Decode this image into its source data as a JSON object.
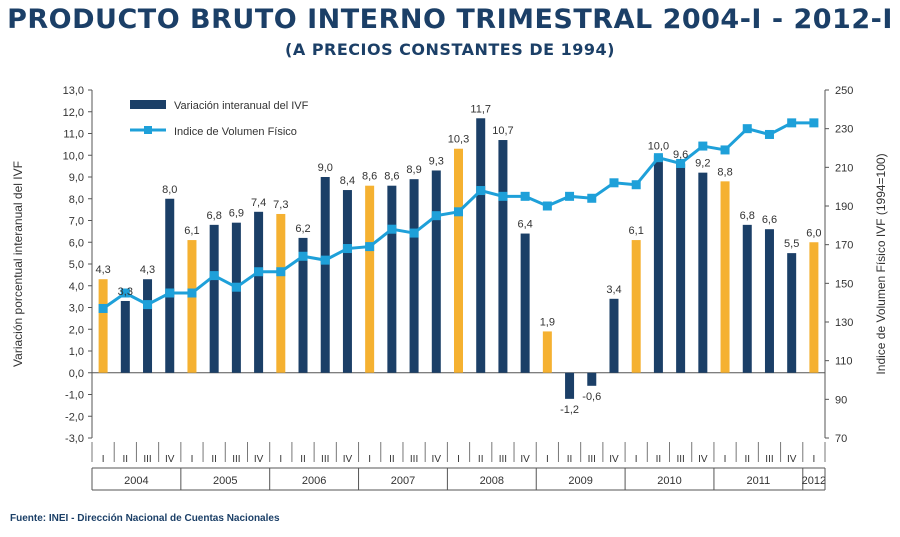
{
  "header": {
    "title": "PRODUCTO BRUTO INTERNO TRIMESTRAL 2004-I - 2012-I",
    "subtitle": "(A PRECIOS CONSTANTES DE 1994)"
  },
  "footer": {
    "source": "Fuente: INEI - Dirección  Nacional de Cuentas  Nacionales"
  },
  "colors": {
    "bar_dark": "#1b3f67",
    "bar_highlight": "#f5b131",
    "line": "#1ea0d9",
    "text": "#1b3f67"
  },
  "chart_data": {
    "type": "bar",
    "title": "PRODUCTO BRUTO INTERNO TRIMESTRAL 2004-I - 2012-I",
    "ylabel": "Variación porcentual interanual del IVF",
    "y2label": "Indice de Volumen Físico IVF (1994=100)",
    "ylim": [
      -3,
      13
    ],
    "yticks": [
      "-3,0",
      "-2,0",
      "-1,0",
      "0,0",
      "1,0",
      "2,0",
      "3,0",
      "4,0",
      "5,0",
      "6,0",
      "7,0",
      "8,0",
      "9,0",
      "10,0",
      "11,0",
      "12,0",
      "13,0"
    ],
    "y2lim": [
      70,
      250
    ],
    "y2ticks": [
      "70",
      "90",
      "110",
      "130",
      "150",
      "170",
      "190",
      "210",
      "230",
      "250"
    ],
    "quarters": [
      "I",
      "II",
      "III",
      "IV",
      "I",
      "II",
      "III",
      "IV",
      "I",
      "II",
      "III",
      "IV",
      "I",
      "II",
      "III",
      "IV",
      "I",
      "II",
      "III",
      "IV",
      "I",
      "II",
      "III",
      "IV",
      "I",
      "II",
      "III",
      "IV",
      "I",
      "II",
      "III",
      "IV",
      "I"
    ],
    "years": [
      {
        "label": "2004",
        "quarters": 4
      },
      {
        "label": "2005",
        "quarters": 4
      },
      {
        "label": "2006",
        "quarters": 4
      },
      {
        "label": "2007",
        "quarters": 4
      },
      {
        "label": "2008",
        "quarters": 4
      },
      {
        "label": "2009",
        "quarters": 4
      },
      {
        "label": "2010",
        "quarters": 4
      },
      {
        "label": "2011",
        "quarters": 4
      },
      {
        "label": "2012",
        "quarters": 1
      }
    ],
    "legend_placement": "top-left",
    "series": [
      {
        "name": "Variación interanual del IVF",
        "type": "bar",
        "axis": "left",
        "highlight_first_quarter": true,
        "values": [
          4.3,
          3.3,
          4.3,
          8.0,
          6.1,
          6.8,
          6.9,
          7.4,
          7.3,
          6.2,
          9.0,
          8.4,
          8.6,
          8.6,
          8.9,
          9.3,
          10.3,
          11.7,
          10.7,
          6.4,
          1.9,
          -1.2,
          -0.6,
          3.4,
          6.1,
          10.0,
          9.6,
          9.2,
          8.8,
          6.8,
          6.6,
          5.5,
          6.0
        ],
        "labels": [
          "4,3",
          "3,3",
          "4,3",
          "8,0",
          "6,1",
          "6,8",
          "6,9",
          "7,4",
          "7,3",
          "6,2",
          "9,0",
          "8,4",
          "8,6",
          "8,6",
          "8,9",
          "9,3",
          "10,3",
          "11,7",
          "10,7",
          "6,4",
          "1,9",
          "-1,2",
          "-0,6",
          "3,4",
          "6,1",
          "10,0",
          "9,6",
          "9,2",
          "8,8",
          "6,8",
          "6,6",
          "5,5",
          "6,0"
        ]
      },
      {
        "name": "Indice de Volumen Físico",
        "type": "line",
        "axis": "right",
        "values": [
          137,
          145,
          139,
          145,
          145,
          154,
          148,
          156,
          156,
          164,
          162,
          168,
          169,
          178,
          176,
          185,
          187,
          198,
          195,
          195,
          190,
          195,
          194,
          202,
          201,
          215,
          212,
          221,
          219,
          230,
          227,
          233,
          233
        ]
      }
    ]
  }
}
